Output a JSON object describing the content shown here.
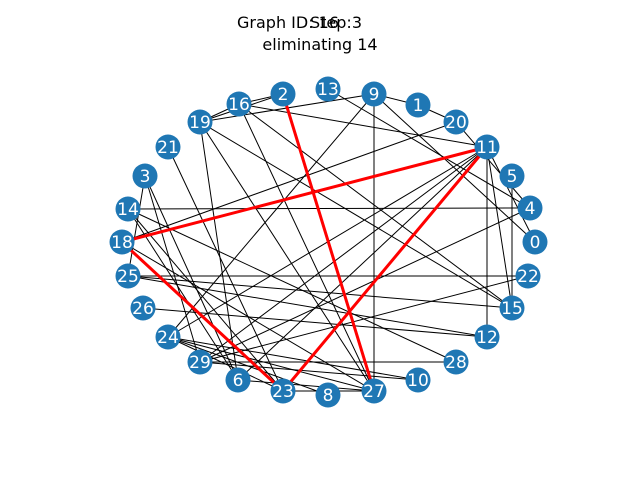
{
  "title": {
    "line1_graph": "Graph ID: 16",
    "line1_step": "Step:3",
    "line2": "eliminating 14"
  },
  "colors": {
    "node_fill": "#1f77b4",
    "node_label": "#ffffff",
    "edge": "#000000",
    "highlight_edge": "#ff0000",
    "background": "#ffffff"
  },
  "nodes": [
    "0",
    "1",
    "2",
    "3",
    "4",
    "5",
    "6",
    "8",
    "9",
    "10",
    "11",
    "12",
    "13",
    "14",
    "15",
    "16",
    "18",
    "19",
    "20",
    "21",
    "22",
    "23",
    "24",
    "25",
    "26",
    "27",
    "28",
    "29"
  ],
  "edges": [
    [
      "2",
      "16"
    ],
    [
      "2",
      "19"
    ],
    [
      "16",
      "19"
    ],
    [
      "16",
      "11"
    ],
    [
      "16",
      "15"
    ],
    [
      "16",
      "27"
    ],
    [
      "19",
      "9"
    ],
    [
      "19",
      "27"
    ],
    [
      "19",
      "6"
    ],
    [
      "19",
      "15"
    ],
    [
      "21",
      "23"
    ],
    [
      "13",
      "4"
    ],
    [
      "9",
      "1"
    ],
    [
      "9",
      "0"
    ],
    [
      "9",
      "27"
    ],
    [
      "9",
      "24"
    ],
    [
      "1",
      "20"
    ],
    [
      "20",
      "4"
    ],
    [
      "20",
      "18"
    ],
    [
      "11",
      "0"
    ],
    [
      "11",
      "15"
    ],
    [
      "11",
      "12"
    ],
    [
      "11",
      "24"
    ],
    [
      "11",
      "29"
    ],
    [
      "11",
      "6"
    ],
    [
      "5",
      "15"
    ],
    [
      "4",
      "29"
    ],
    [
      "4",
      "14"
    ],
    [
      "22",
      "29"
    ],
    [
      "22",
      "25"
    ],
    [
      "3",
      "29"
    ],
    [
      "3",
      "6"
    ],
    [
      "3",
      "25"
    ],
    [
      "14",
      "28"
    ],
    [
      "14",
      "6"
    ],
    [
      "14",
      "23"
    ],
    [
      "18",
      "27"
    ],
    [
      "25",
      "12"
    ],
    [
      "25",
      "15"
    ],
    [
      "26",
      "12"
    ],
    [
      "24",
      "27"
    ],
    [
      "24",
      "8"
    ],
    [
      "24",
      "10"
    ],
    [
      "24",
      "23"
    ],
    [
      "29",
      "28"
    ],
    [
      "29",
      "10"
    ],
    [
      "6",
      "27"
    ],
    [
      "23",
      "27"
    ]
  ],
  "highlight_edges": [
    [
      "2",
      "27"
    ],
    [
      "11",
      "18"
    ],
    [
      "11",
      "23"
    ],
    [
      "18",
      "23"
    ]
  ]
}
